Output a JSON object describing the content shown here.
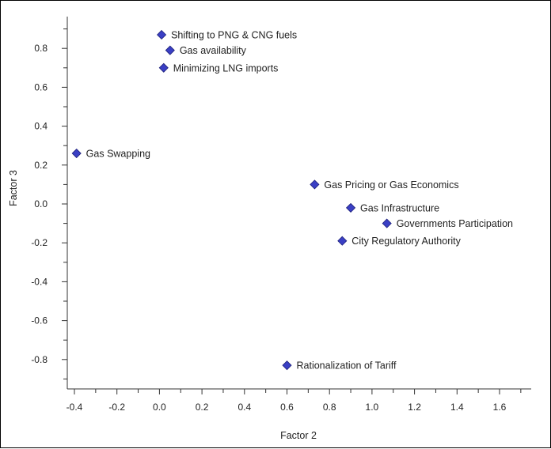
{
  "chart_data": {
    "type": "scatter",
    "title": "",
    "xlabel": "Factor 2",
    "ylabel": "Factor 3",
    "xlim": [
      -0.42,
      1.68
    ],
    "ylim": [
      -0.9,
      0.92
    ],
    "x_ticks": [
      "-0.4",
      "-0.2",
      "0.0",
      "0.2",
      "0.4",
      "0.6",
      "0.8",
      "1.0",
      "1.2",
      "1.4",
      "1.6"
    ],
    "y_ticks": [
      "-0.8",
      "-0.6",
      "-0.4",
      "-0.2",
      "0.0",
      "0.2",
      "0.4",
      "0.6",
      "0.8"
    ],
    "grid": false,
    "marker": "diamond",
    "marker_color": "#3a3fc4",
    "points": [
      {
        "label": "Shifting to PNG & CNG fuels",
        "x": 0.01,
        "y": 0.87
      },
      {
        "label": "Gas availability",
        "x": 0.05,
        "y": 0.79
      },
      {
        "label": "Minimizing LNG imports",
        "x": 0.02,
        "y": 0.7
      },
      {
        "label": "Gas Swapping",
        "x": -0.39,
        "y": 0.26
      },
      {
        "label": "Gas Pricing or Gas Economics",
        "x": 0.73,
        "y": 0.1
      },
      {
        "label": "Gas Infrastructure",
        "x": 0.9,
        "y": -0.02
      },
      {
        "label": "Governments Participation",
        "x": 1.07,
        "y": -0.1
      },
      {
        "label": "City Regulatory Authority",
        "x": 0.86,
        "y": -0.19
      },
      {
        "label": "Rationalization of Tariff",
        "x": 0.6,
        "y": -0.83
      }
    ]
  }
}
